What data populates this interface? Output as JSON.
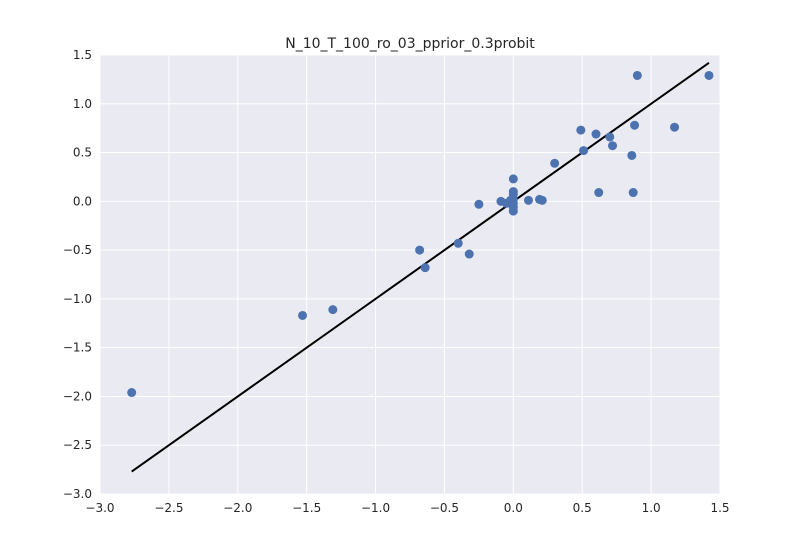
{
  "chart_data": {
    "type": "scatter",
    "title": "N_10_T_100_ro_03_pprior_0.3probit",
    "xlabel": "",
    "ylabel": "",
    "xlim": [
      -3.0,
      1.5
    ],
    "ylim": [
      -3.0,
      1.5
    ],
    "grid": true,
    "x_ticks": [
      -3.0,
      -2.5,
      -2.0,
      -1.5,
      -1.0,
      -0.5,
      0.0,
      0.5,
      1.0,
      1.5
    ],
    "y_ticks": [
      -3.0,
      -2.5,
      -2.0,
      -1.5,
      -1.0,
      -0.5,
      0.0,
      0.5,
      1.0,
      1.5
    ],
    "x_tick_labels": [
      "−3.0",
      "−2.5",
      "−2.0",
      "−1.5",
      "−1.0",
      "−0.5",
      "0.0",
      "0.5",
      "1.0",
      "1.5"
    ],
    "y_tick_labels": [
      "−3.0",
      "−2.5",
      "−2.0",
      "−1.5",
      "−1.0",
      "−0.5",
      "0.0",
      "0.5",
      "1.0",
      "1.5"
    ],
    "colors": {
      "points": "#4c72b0",
      "line": "#000000",
      "background": "#eaeaf2",
      "grid": "#ffffff"
    },
    "points": [
      {
        "x": -2.77,
        "y": -1.96
      },
      {
        "x": -1.53,
        "y": -1.17
      },
      {
        "x": -1.31,
        "y": -1.11
      },
      {
        "x": -0.68,
        "y": -0.5
      },
      {
        "x": -0.64,
        "y": -0.68
      },
      {
        "x": -0.4,
        "y": -0.43
      },
      {
        "x": -0.32,
        "y": -0.54
      },
      {
        "x": -0.25,
        "y": -0.03
      },
      {
        "x": -0.09,
        "y": 0.0
      },
      {
        "x": -0.05,
        "y": -0.02
      },
      {
        "x": -0.02,
        "y": 0.01
      },
      {
        "x": 0.0,
        "y": 0.23
      },
      {
        "x": 0.0,
        "y": 0.1
      },
      {
        "x": 0.0,
        "y": 0.07
      },
      {
        "x": 0.0,
        "y": 0.02
      },
      {
        "x": 0.0,
        "y": -0.02
      },
      {
        "x": 0.0,
        "y": -0.06
      },
      {
        "x": 0.0,
        "y": -0.1
      },
      {
        "x": 0.11,
        "y": 0.01
      },
      {
        "x": 0.19,
        "y": 0.02
      },
      {
        "x": 0.21,
        "y": 0.01
      },
      {
        "x": 0.3,
        "y": 0.39
      },
      {
        "x": 0.49,
        "y": 0.73
      },
      {
        "x": 0.51,
        "y": 0.52
      },
      {
        "x": 0.6,
        "y": 0.69
      },
      {
        "x": 0.62,
        "y": 0.09
      },
      {
        "x": 0.7,
        "y": 0.66
      },
      {
        "x": 0.72,
        "y": 0.57
      },
      {
        "x": 0.86,
        "y": 0.47
      },
      {
        "x": 0.87,
        "y": 0.09
      },
      {
        "x": 0.88,
        "y": 0.78
      },
      {
        "x": 0.9,
        "y": 1.29
      },
      {
        "x": 1.17,
        "y": 0.76
      },
      {
        "x": 1.42,
        "y": 1.29
      }
    ],
    "line": {
      "x": [
        -2.77,
        1.42
      ],
      "y": [
        -2.77,
        1.42
      ]
    }
  }
}
